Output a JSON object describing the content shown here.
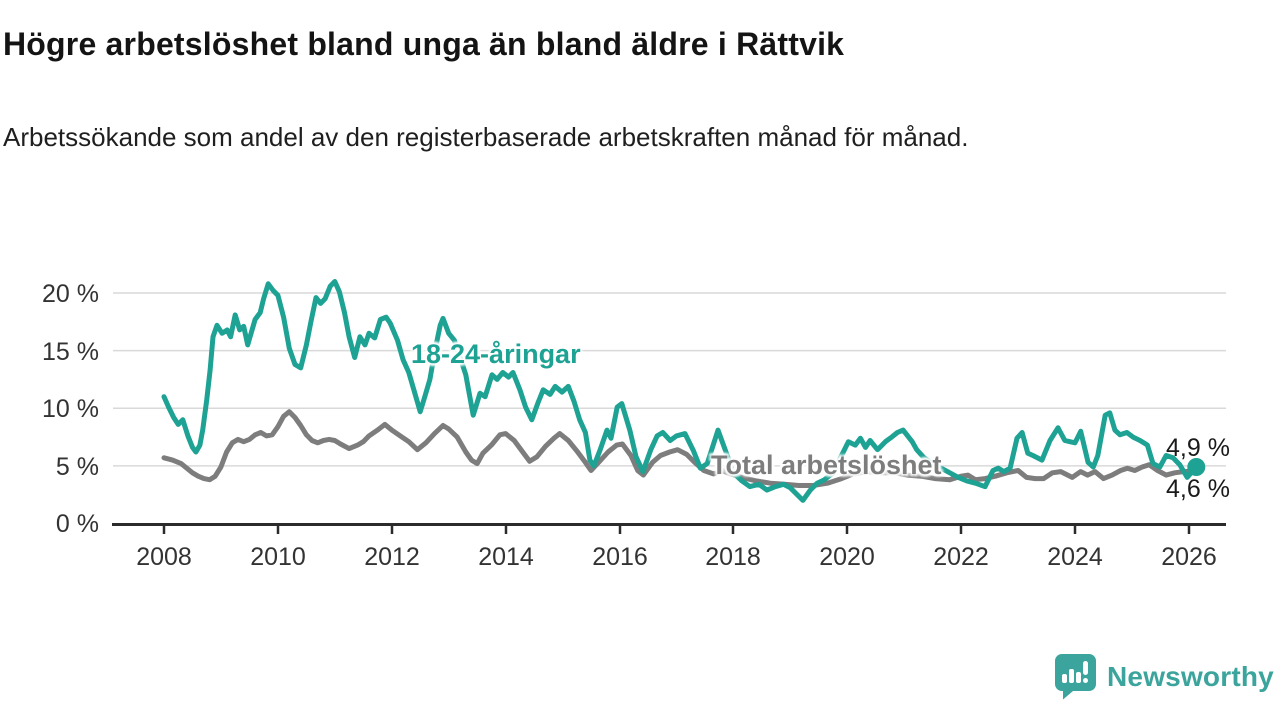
{
  "chart_data": {
    "type": "line",
    "title": "Högre arbetslöshet bland unga än bland äldre i Rättvik",
    "subtitle": "Arbetssökande som andel av den registerbaserade arbetskraften månad för månad.",
    "unit": "%",
    "decimal_style": "swedish-comma",
    "grid": "horizontal",
    "xlim": [
      2008,
      2026.3
    ],
    "ylim": [
      0,
      21.5
    ],
    "x_ticks": [
      "2008",
      "2010",
      "2012",
      "2014",
      "2016",
      "2018",
      "2020",
      "2022",
      "2024",
      "2026"
    ],
    "y_ticks": [
      "0 %",
      "5 %",
      "10 %",
      "15 %",
      "20 %"
    ],
    "series": [
      {
        "name": "18-24-åringar",
        "color": "#1da294",
        "end_label": "4,9 %",
        "end_value": 4.9,
        "marker_end": true,
        "points": [
          [
            2008.0,
            11.0
          ],
          [
            2008.08,
            10.1
          ],
          [
            2008.17,
            9.2
          ],
          [
            2008.25,
            8.6
          ],
          [
            2008.33,
            9.0
          ],
          [
            2008.42,
            7.6
          ],
          [
            2008.5,
            6.6
          ],
          [
            2008.56,
            6.2
          ],
          [
            2008.63,
            6.8
          ],
          [
            2008.68,
            8.1
          ],
          [
            2008.75,
            10.7
          ],
          [
            2008.81,
            13.3
          ],
          [
            2008.86,
            16.2
          ],
          [
            2008.93,
            17.2
          ],
          [
            2009.02,
            16.5
          ],
          [
            2009.11,
            16.8
          ],
          [
            2009.17,
            16.2
          ],
          [
            2009.25,
            18.1
          ],
          [
            2009.33,
            16.8
          ],
          [
            2009.4,
            17.1
          ],
          [
            2009.47,
            15.5
          ],
          [
            2009.6,
            17.7
          ],
          [
            2009.69,
            18.3
          ],
          [
            2009.75,
            19.5
          ],
          [
            2009.83,
            20.8
          ],
          [
            2009.92,
            20.2
          ],
          [
            2010.0,
            19.8
          ],
          [
            2010.1,
            17.9
          ],
          [
            2010.2,
            15.2
          ],
          [
            2010.3,
            13.8
          ],
          [
            2010.4,
            13.5
          ],
          [
            2010.5,
            15.5
          ],
          [
            2010.58,
            17.5
          ],
          [
            2010.67,
            19.6
          ],
          [
            2010.75,
            19.1
          ],
          [
            2010.83,
            19.5
          ],
          [
            2010.92,
            20.6
          ],
          [
            2011.0,
            21.0
          ],
          [
            2011.08,
            20.1
          ],
          [
            2011.17,
            18.3
          ],
          [
            2011.25,
            16.2
          ],
          [
            2011.35,
            14.4
          ],
          [
            2011.44,
            16.2
          ],
          [
            2011.53,
            15.5
          ],
          [
            2011.6,
            16.5
          ],
          [
            2011.7,
            16.1
          ],
          [
            2011.8,
            17.7
          ],
          [
            2011.9,
            17.9
          ],
          [
            2011.97,
            17.4
          ],
          [
            2012.1,
            15.9
          ],
          [
            2012.2,
            14.2
          ],
          [
            2012.3,
            13.1
          ],
          [
            2012.4,
            11.4
          ],
          [
            2012.5,
            9.7
          ],
          [
            2012.58,
            11.0
          ],
          [
            2012.67,
            12.5
          ],
          [
            2012.75,
            14.8
          ],
          [
            2012.85,
            17.2
          ],
          [
            2012.9,
            17.8
          ],
          [
            2013.0,
            16.5
          ],
          [
            2013.1,
            15.9
          ],
          [
            2013.2,
            14.4
          ],
          [
            2013.3,
            12.9
          ],
          [
            2013.43,
            9.4
          ],
          [
            2013.55,
            11.3
          ],
          [
            2013.64,
            11.0
          ],
          [
            2013.76,
            12.9
          ],
          [
            2013.85,
            12.5
          ],
          [
            2013.95,
            13.1
          ],
          [
            2014.05,
            12.7
          ],
          [
            2014.13,
            13.1
          ],
          [
            2014.25,
            11.6
          ],
          [
            2014.35,
            10.1
          ],
          [
            2014.46,
            9.0
          ],
          [
            2014.57,
            10.5
          ],
          [
            2014.66,
            11.6
          ],
          [
            2014.78,
            11.2
          ],
          [
            2014.87,
            11.9
          ],
          [
            2014.99,
            11.4
          ],
          [
            2015.1,
            11.9
          ],
          [
            2015.2,
            10.6
          ],
          [
            2015.3,
            9.0
          ],
          [
            2015.4,
            7.9
          ],
          [
            2015.48,
            5.5
          ],
          [
            2015.55,
            5.0
          ],
          [
            2015.66,
            6.4
          ],
          [
            2015.78,
            8.1
          ],
          [
            2015.85,
            7.4
          ],
          [
            2015.96,
            10.1
          ],
          [
            2016.04,
            10.4
          ],
          [
            2016.18,
            8.1
          ],
          [
            2016.29,
            5.8
          ],
          [
            2016.41,
            4.5
          ],
          [
            2016.55,
            6.4
          ],
          [
            2016.66,
            7.6
          ],
          [
            2016.76,
            7.9
          ],
          [
            2016.89,
            7.2
          ],
          [
            2017.0,
            7.6
          ],
          [
            2017.15,
            7.8
          ],
          [
            2017.3,
            6.3
          ],
          [
            2017.42,
            4.8
          ],
          [
            2017.54,
            5.2
          ],
          [
            2017.73,
            8.1
          ],
          [
            2017.9,
            5.8
          ],
          [
            2018.0,
            4.4
          ],
          [
            2018.15,
            3.7
          ],
          [
            2018.29,
            3.2
          ],
          [
            2018.45,
            3.4
          ],
          [
            2018.59,
            2.9
          ],
          [
            2018.74,
            3.2
          ],
          [
            2018.88,
            3.4
          ],
          [
            2019.0,
            3.1
          ],
          [
            2019.1,
            2.6
          ],
          [
            2019.22,
            2.0
          ],
          [
            2019.35,
            2.9
          ],
          [
            2019.47,
            3.5
          ],
          [
            2019.6,
            3.8
          ],
          [
            2019.75,
            4.4
          ],
          [
            2019.93,
            6.2
          ],
          [
            2020.02,
            7.1
          ],
          [
            2020.14,
            6.8
          ],
          [
            2020.23,
            7.4
          ],
          [
            2020.32,
            6.6
          ],
          [
            2020.4,
            7.2
          ],
          [
            2020.53,
            6.4
          ],
          [
            2020.67,
            7.1
          ],
          [
            2020.78,
            7.5
          ],
          [
            2020.88,
            7.9
          ],
          [
            2020.98,
            8.1
          ],
          [
            2021.14,
            7.1
          ],
          [
            2021.22,
            6.4
          ],
          [
            2021.35,
            5.7
          ],
          [
            2021.5,
            5.2
          ],
          [
            2021.65,
            4.8
          ],
          [
            2021.8,
            4.4
          ],
          [
            2021.95,
            4.0
          ],
          [
            2022.1,
            3.7
          ],
          [
            2022.25,
            3.5
          ],
          [
            2022.42,
            3.2
          ],
          [
            2022.56,
            4.6
          ],
          [
            2022.65,
            4.8
          ],
          [
            2022.75,
            4.5
          ],
          [
            2022.86,
            4.8
          ],
          [
            2022.98,
            7.4
          ],
          [
            2023.07,
            7.9
          ],
          [
            2023.17,
            6.1
          ],
          [
            2023.26,
            5.9
          ],
          [
            2023.42,
            5.5
          ],
          [
            2023.56,
            7.2
          ],
          [
            2023.7,
            8.3
          ],
          [
            2023.82,
            7.2
          ],
          [
            2023.91,
            7.1
          ],
          [
            2024.0,
            7.0
          ],
          [
            2024.1,
            8.0
          ],
          [
            2024.23,
            5.3
          ],
          [
            2024.32,
            4.9
          ],
          [
            2024.4,
            5.9
          ],
          [
            2024.53,
            9.4
          ],
          [
            2024.61,
            9.6
          ],
          [
            2024.7,
            8.1
          ],
          [
            2024.79,
            7.7
          ],
          [
            2024.91,
            7.9
          ],
          [
            2025.02,
            7.5
          ],
          [
            2025.14,
            7.2
          ],
          [
            2025.27,
            6.8
          ],
          [
            2025.37,
            5.2
          ],
          [
            2025.49,
            4.9
          ],
          [
            2025.6,
            5.9
          ],
          [
            2025.72,
            5.7
          ],
          [
            2025.84,
            5.1
          ],
          [
            2025.97,
            4.0
          ],
          [
            2026.13,
            4.9
          ]
        ]
      },
      {
        "name": "Total arbetslöshet",
        "color": "#7d7d7d",
        "end_label": "4,6 %",
        "end_value": 4.6,
        "marker_end": false,
        "points": [
          [
            2008.0,
            5.7
          ],
          [
            2008.15,
            5.5
          ],
          [
            2008.3,
            5.2
          ],
          [
            2008.4,
            4.8
          ],
          [
            2008.5,
            4.4
          ],
          [
            2008.6,
            4.1
          ],
          [
            2008.7,
            3.9
          ],
          [
            2008.8,
            3.8
          ],
          [
            2008.9,
            4.1
          ],
          [
            2009.0,
            4.9
          ],
          [
            2009.1,
            6.2
          ],
          [
            2009.2,
            7.0
          ],
          [
            2009.3,
            7.3
          ],
          [
            2009.4,
            7.1
          ],
          [
            2009.5,
            7.3
          ],
          [
            2009.6,
            7.7
          ],
          [
            2009.7,
            7.9
          ],
          [
            2009.8,
            7.6
          ],
          [
            2009.9,
            7.7
          ],
          [
            2010.0,
            8.4
          ],
          [
            2010.1,
            9.3
          ],
          [
            2010.2,
            9.7
          ],
          [
            2010.3,
            9.2
          ],
          [
            2010.4,
            8.5
          ],
          [
            2010.5,
            7.7
          ],
          [
            2010.6,
            7.2
          ],
          [
            2010.7,
            7.0
          ],
          [
            2010.8,
            7.2
          ],
          [
            2010.9,
            7.3
          ],
          [
            2011.0,
            7.2
          ],
          [
            2011.1,
            6.9
          ],
          [
            2011.25,
            6.5
          ],
          [
            2011.4,
            6.8
          ],
          [
            2011.5,
            7.1
          ],
          [
            2011.6,
            7.6
          ],
          [
            2011.75,
            8.1
          ],
          [
            2011.88,
            8.6
          ],
          [
            2012.0,
            8.1
          ],
          [
            2012.15,
            7.6
          ],
          [
            2012.3,
            7.1
          ],
          [
            2012.45,
            6.4
          ],
          [
            2012.6,
            7.0
          ],
          [
            2012.75,
            7.8
          ],
          [
            2012.9,
            8.5
          ],
          [
            2013.0,
            8.2
          ],
          [
            2013.15,
            7.5
          ],
          [
            2013.3,
            6.2
          ],
          [
            2013.4,
            5.5
          ],
          [
            2013.5,
            5.2
          ],
          [
            2013.6,
            6.1
          ],
          [
            2013.75,
            6.8
          ],
          [
            2013.9,
            7.7
          ],
          [
            2014.0,
            7.8
          ],
          [
            2014.15,
            7.2
          ],
          [
            2014.3,
            6.2
          ],
          [
            2014.42,
            5.4
          ],
          [
            2014.55,
            5.8
          ],
          [
            2014.7,
            6.7
          ],
          [
            2014.85,
            7.4
          ],
          [
            2014.95,
            7.8
          ],
          [
            2015.1,
            7.2
          ],
          [
            2015.25,
            6.3
          ],
          [
            2015.4,
            5.3
          ],
          [
            2015.5,
            4.6
          ],
          [
            2015.65,
            5.4
          ],
          [
            2015.8,
            6.2
          ],
          [
            2015.95,
            6.8
          ],
          [
            2016.05,
            6.9
          ],
          [
            2016.2,
            5.9
          ],
          [
            2016.32,
            4.6
          ],
          [
            2016.42,
            4.2
          ],
          [
            2016.58,
            5.3
          ],
          [
            2016.72,
            5.9
          ],
          [
            2016.88,
            6.2
          ],
          [
            2017.02,
            6.4
          ],
          [
            2017.18,
            6.0
          ],
          [
            2017.32,
            5.3
          ],
          [
            2017.48,
            4.6
          ],
          [
            2017.65,
            4.3
          ],
          [
            2017.8,
            4.6
          ],
          [
            2017.95,
            4.3
          ],
          [
            2018.15,
            4.0
          ],
          [
            2018.4,
            3.7
          ],
          [
            2018.65,
            3.5
          ],
          [
            2018.9,
            3.4
          ],
          [
            2019.15,
            3.3
          ],
          [
            2019.4,
            3.3
          ],
          [
            2019.65,
            3.5
          ],
          [
            2019.9,
            3.9
          ],
          [
            2020.1,
            4.3
          ],
          [
            2020.35,
            4.5
          ],
          [
            2020.6,
            4.4
          ],
          [
            2020.85,
            4.4
          ],
          [
            2021.05,
            4.2
          ],
          [
            2021.3,
            4.1
          ],
          [
            2021.55,
            3.9
          ],
          [
            2021.8,
            3.8
          ],
          [
            2022.0,
            4.1
          ],
          [
            2022.12,
            4.2
          ],
          [
            2022.25,
            3.8
          ],
          [
            2022.42,
            3.9
          ],
          [
            2022.6,
            4.1
          ],
          [
            2022.8,
            4.4
          ],
          [
            2023.0,
            4.6
          ],
          [
            2023.15,
            4.0
          ],
          [
            2023.3,
            3.9
          ],
          [
            2023.45,
            3.9
          ],
          [
            2023.6,
            4.4
          ],
          [
            2023.75,
            4.5
          ],
          [
            2023.95,
            4.0
          ],
          [
            2024.1,
            4.5
          ],
          [
            2024.22,
            4.2
          ],
          [
            2024.35,
            4.5
          ],
          [
            2024.5,
            3.9
          ],
          [
            2024.65,
            4.2
          ],
          [
            2024.8,
            4.6
          ],
          [
            2024.92,
            4.8
          ],
          [
            2025.05,
            4.6
          ],
          [
            2025.18,
            4.9
          ],
          [
            2025.3,
            5.1
          ],
          [
            2025.45,
            4.6
          ],
          [
            2025.6,
            4.2
          ],
          [
            2025.75,
            4.4
          ],
          [
            2025.9,
            4.5
          ],
          [
            2026.05,
            4.55
          ],
          [
            2026.13,
            4.6
          ]
        ]
      }
    ]
  },
  "branding": {
    "logo_text": "Newsworthy"
  }
}
